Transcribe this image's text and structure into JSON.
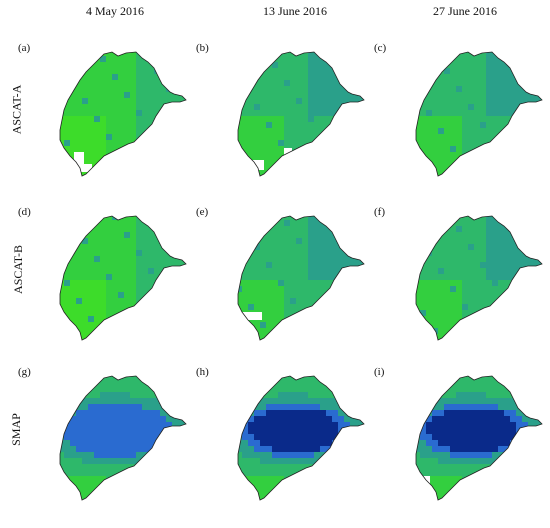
{
  "columns": [
    "4 May 2016",
    "13 June 2016",
    "27 June 2016"
  ],
  "rows": [
    "ASCAT-A",
    "ASCAT-B",
    "SMAP"
  ],
  "panel_labels": [
    "(a)",
    "(b)",
    "(c)",
    "(d)",
    "(e)",
    "(f)",
    "(g)",
    "(h)",
    "(i)"
  ],
  "colors": {
    "light_green": "#3ddc2a",
    "green": "#33cf3f",
    "teal_green": "#2eb86a",
    "teal": "#2aa08a",
    "blue": "#2a6bd0",
    "dark_blue": "#0a2a8a",
    "outline": "#222222",
    "gap": "#ffffff"
  }
}
